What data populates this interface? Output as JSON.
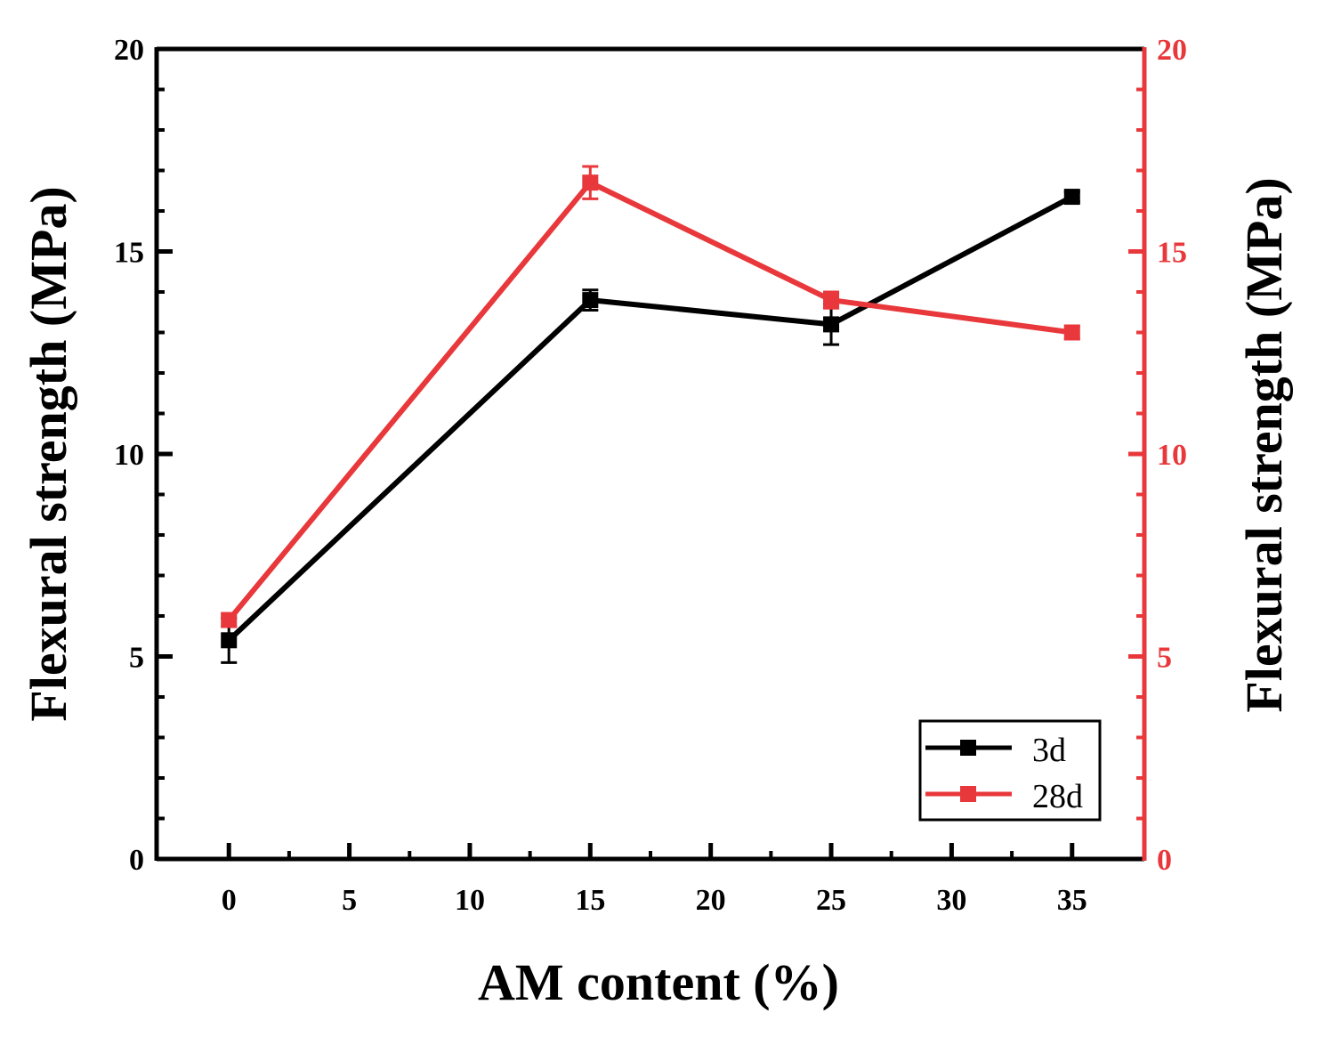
{
  "chart_data": {
    "type": "line",
    "title": "",
    "xlabel": "AM content (%)",
    "ylabel": "Flexural strength (MPa)",
    "y2label": "Flexural strength (MPa)",
    "xlim": [
      -3,
      38
    ],
    "ylim": [
      0,
      20
    ],
    "y2lim": [
      0,
      20
    ],
    "x_ticks": [
      0,
      5,
      10,
      15,
      20,
      25,
      30,
      35
    ],
    "y_ticks": [
      0,
      5,
      10,
      15,
      20
    ],
    "y2_ticks": [
      0,
      5,
      10,
      15,
      20
    ],
    "legend_position": "bottom-right",
    "series": [
      {
        "name": "3d",
        "color": "#000000",
        "axis": "left",
        "x": [
          0,
          15,
          25,
          35
        ],
        "values": [
          5.4,
          13.8,
          13.2,
          16.35
        ],
        "errors": [
          0.55,
          0.25,
          0.5,
          0.12
        ]
      },
      {
        "name": "28d",
        "color": "#e8383b",
        "axis": "right",
        "x": [
          0,
          15,
          25,
          35
        ],
        "values": [
          5.9,
          16.7,
          13.8,
          13.0
        ],
        "errors": [
          0.15,
          0.4,
          0.2,
          0.15
        ]
      }
    ]
  }
}
